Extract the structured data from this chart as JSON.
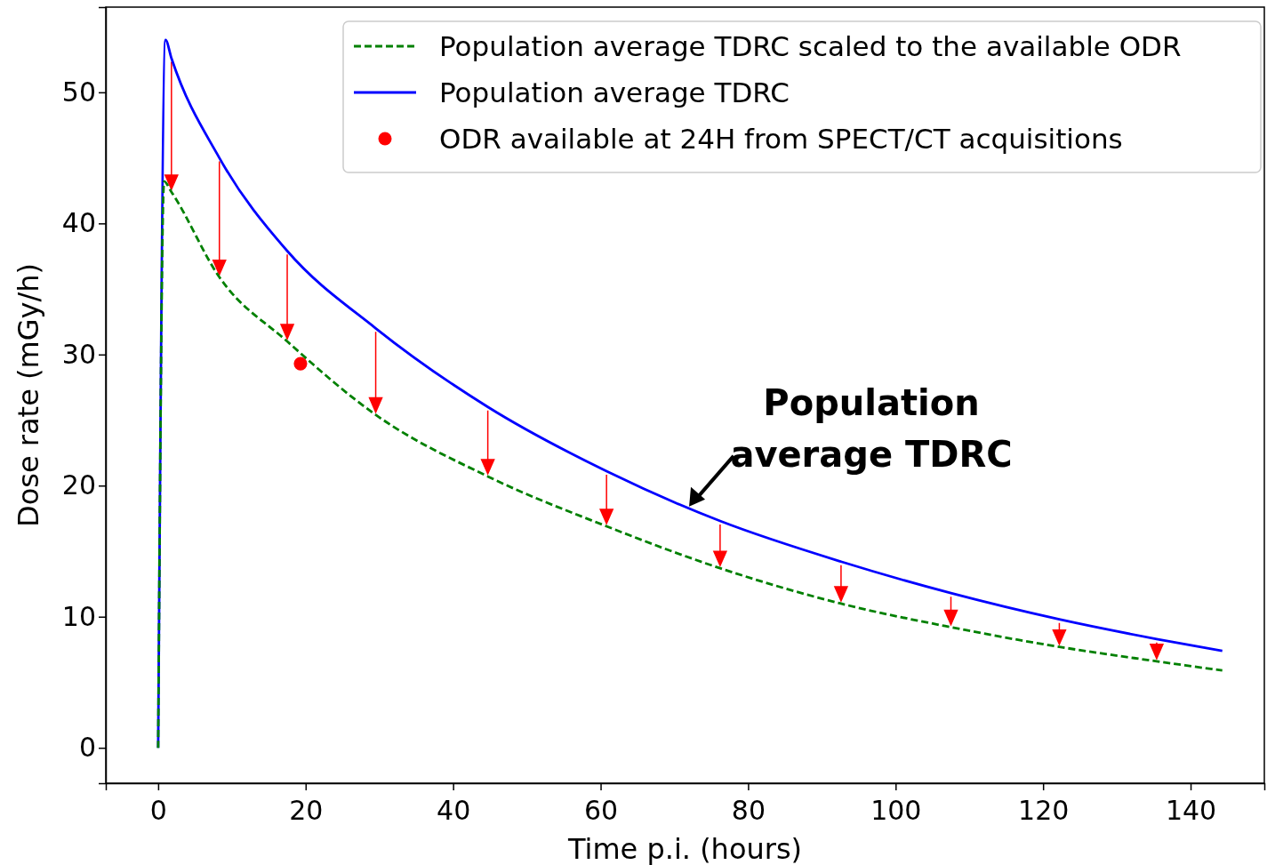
{
  "chart_data": {
    "type": "line",
    "xlabel": "Time p.i. (hours)",
    "ylabel": "Dose rate (mGy/h)",
    "xlim": [
      -7.1,
      150
    ],
    "xticks": [
      0,
      20,
      40,
      60,
      80,
      100,
      120,
      140
    ],
    "ylim": [
      -2.7,
      56.5
    ],
    "yticks": [
      0,
      10,
      20,
      30,
      40,
      50
    ],
    "grid": false,
    "legend": "top right",
    "marker": "none",
    "series": [
      {
        "name": "Population average TDRC scaled to the available ODR",
        "color": "#008000",
        "line_style": "dashed",
        "x": [
          0,
          0.8,
          1.8,
          8.3,
          17.5,
          29.5,
          44.7,
          60.8,
          76.2,
          92.6,
          107.5,
          122.2,
          135.4,
          144.3
        ],
        "values": [
          0,
          43.2,
          42.4,
          35.9,
          31.0,
          25.4,
          20.7,
          16.9,
          13.7,
          11.0,
          9.2,
          7.7,
          6.6,
          5.9
        ]
      },
      {
        "name": "Population average TDRC",
        "color": "#0000ff",
        "line_style": "solid",
        "x": [
          0,
          1,
          1.8,
          8.3,
          17.5,
          29.5,
          44.7,
          60.8,
          76.2,
          92.6,
          107.5,
          122.2,
          135.4,
          144.3
        ],
        "values": [
          0,
          54.0,
          52.6,
          45.0,
          37.9,
          32.0,
          26.0,
          21.1,
          17.3,
          14.2,
          11.8,
          9.8,
          8.3,
          7.4
        ]
      },
      {
        "name": "ODR available at 24H from SPECT/CT acquisitions",
        "type": "scatter",
        "marker": "circle",
        "color": "#ff0000",
        "x": [
          19.3
        ],
        "values": [
          29.3
        ]
      }
    ],
    "annotations": [
      {
        "text": "Population\naverage TDRC",
        "x": 72,
        "y": 18.4
      }
    ]
  }
}
